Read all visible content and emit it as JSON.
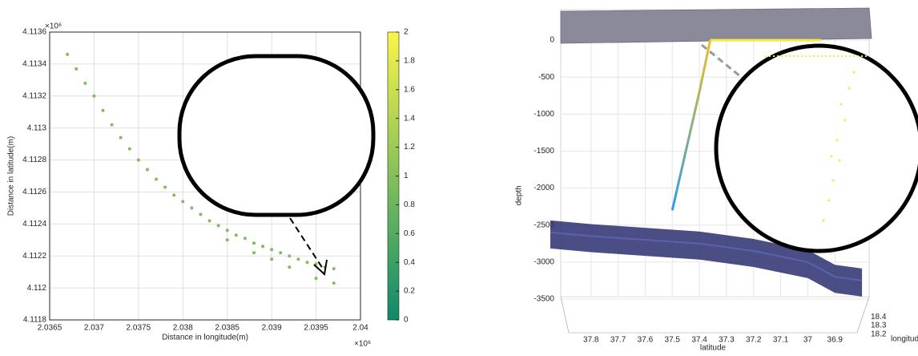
{
  "chart_data": [
    {
      "type": "scatter",
      "xlabel": "Distance in longitude(m)",
      "ylabel": "Distance in latitude(m)",
      "x_multiplier": "×10⁶",
      "y_multiplier": "×10⁶",
      "xlim": [
        2.0365,
        2.04
      ],
      "xticks": [
        2.0365,
        2.037,
        2.0375,
        2.038,
        2.0385,
        2.039,
        2.0395,
        2.04
      ],
      "ylim": [
        4.1118,
        4.1136
      ],
      "yticks": [
        4.1118,
        4.112,
        4.1122,
        4.1124,
        4.1126,
        4.1128,
        4.113,
        4.1132,
        4.1134,
        4.1136
      ],
      "grid": true,
      "series": [
        {
          "color": "#7cbf5c",
          "x": [
            2.0367,
            2.0368,
            2.0369,
            2.037,
            2.0371,
            2.0372,
            2.0373,
            2.0374,
            2.0375,
            2.0376,
            2.0377,
            2.0378,
            2.0379,
            2.038,
            2.0381,
            2.0382,
            2.0383,
            2.0384,
            2.0385,
            2.0386,
            2.0387,
            2.0388,
            2.0389,
            2.039,
            2.0391,
            2.0392,
            2.0393,
            2.0394,
            2.0395,
            2.0396,
            2.0397,
            2.0385,
            2.0388,
            2.039,
            2.0392,
            2.0395,
            2.0397
          ],
          "values": [
            4.11346,
            4.11337,
            4.11328,
            4.1132,
            4.11311,
            4.11302,
            4.11294,
            4.11287,
            4.1128,
            4.11274,
            4.11268,
            4.11263,
            4.11258,
            4.11254,
            4.1125,
            4.11246,
            4.11242,
            4.11239,
            4.11236,
            4.11233,
            4.11231,
            4.11228,
            4.11226,
            4.11224,
            4.11222,
            4.1122,
            4.11218,
            4.11216,
            4.11215,
            4.11213,
            4.11212,
            4.1123,
            4.11222,
            4.11218,
            4.11213,
            4.11206,
            4.11203
          ]
        }
      ],
      "colorbar": {
        "lim": [
          0,
          2
        ],
        "ticks": [
          0,
          0.2,
          0.4,
          0.6,
          0.8,
          1,
          1.2,
          1.4,
          1.6,
          1.8,
          2
        ],
        "colors": [
          "#0f8a6c",
          "#f9f54a"
        ]
      }
    },
    {
      "type": "3d",
      "xlabel": "latitude",
      "ylabel": "depth",
      "zlabel": "longitude",
      "xlim": [
        37.95,
        36.75
      ],
      "xticks": [
        37.8,
        37.7,
        37.6,
        37.5,
        37.4,
        37.3,
        37.2,
        37.1,
        37,
        36.9
      ],
      "ylim": [
        -3750,
        250
      ],
      "yticks": [
        0,
        -500,
        -1000,
        -1500,
        -2000,
        -2500,
        -3000,
        -3500
      ],
      "zlim": [
        18.15,
        18.45
      ],
      "zticks": [
        18.2,
        18.3,
        18.4
      ],
      "grid": true,
      "seafloor": {
        "color": "#2a2f6e",
        "x": [
          37.95,
          37.8,
          37.6,
          37.4,
          37.2,
          37.0,
          36.9,
          36.8
        ],
        "values": [
          -2600,
          -2650,
          -2700,
          -2750,
          -2850,
          -3000,
          -3200,
          -3250
        ]
      },
      "surface_track": {
        "color": "#f2ee3a",
        "x": [
          37.36,
          36.95
        ],
        "values": [
          0,
          0
        ]
      },
      "trajectory": {
        "colors": [
          "#f0c020",
          "#2aa0e0"
        ],
        "x": [
          37.36,
          37.4,
          37.45,
          37.5
        ],
        "values": [
          0,
          -700,
          -1500,
          -2300
        ]
      }
    }
  ]
}
